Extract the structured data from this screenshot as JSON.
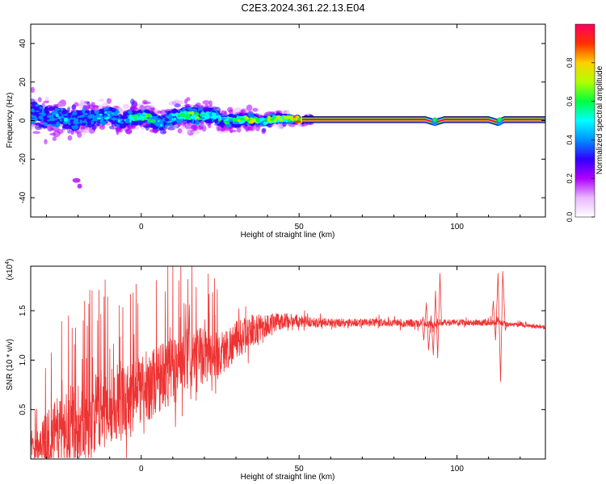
{
  "title": "C2E3.2024.361.22.13.E04",
  "chart_data": [
    {
      "type": "heatmap",
      "xlabel": "Height of straight line (km)",
      "ylabel": "Frequency (Hz)",
      "xlim": [
        -35,
        128
      ],
      "ylim": [
        -50,
        50
      ],
      "xticks": [
        0,
        50,
        100
      ],
      "yticks": [
        -40,
        -20,
        0,
        20,
        40
      ],
      "colorbar": {
        "label": "Normalized spectral amplitude",
        "range": [
          0,
          1
        ],
        "ticks": [
          "0.0",
          "0.2",
          "0.4",
          "0.6",
          "0.8"
        ],
        "colors": [
          "#ffffff",
          "#e8b8ff",
          "#b000ff",
          "#3000ff",
          "#0090ff",
          "#00ffff",
          "#00ff40",
          "#b0ff00",
          "#ffd000",
          "#ff3000",
          "#ff0060"
        ]
      },
      "ridge": {
        "x": [
          -34,
          -30,
          -26,
          -22,
          -18,
          -14,
          -10,
          -6,
          -2,
          2,
          6,
          10,
          14,
          18,
          22,
          26,
          30,
          34,
          38,
          42,
          46,
          50,
          55,
          60,
          70,
          80,
          90,
          93,
          96,
          100,
          110,
          113,
          115,
          120,
          128
        ],
        "freq": [
          4,
          1,
          2,
          -1,
          2,
          1,
          3,
          0,
          2,
          2,
          -2,
          2,
          3,
          2,
          3,
          0,
          0,
          1,
          -1,
          1,
          1,
          0.5,
          0.5,
          0.5,
          0.5,
          0.5,
          0.5,
          -1,
          0.5,
          0.5,
          0.5,
          -1,
          0.5,
          0.5,
          0.5
        ],
        "amplitude": [
          0.3,
          0.3,
          0.4,
          0.35,
          0.35,
          0.4,
          0.4,
          0.35,
          0.5,
          0.55,
          0.35,
          0.45,
          0.55,
          0.55,
          0.45,
          0.5,
          0.5,
          0.65,
          0.6,
          0.6,
          0.6,
          0.8,
          0.95,
          0.95,
          0.95,
          0.95,
          0.95,
          0.6,
          0.95,
          0.95,
          0.95,
          0.6,
          0.95,
          0.95,
          0.95
        ]
      },
      "spread": {
        "x": [
          -34,
          -25,
          -15,
          -5,
          5,
          15,
          25,
          35,
          45,
          52
        ],
        "freq_halfwidth": [
          12,
          10,
          8,
          7,
          7,
          8,
          6,
          5,
          4,
          2
        ]
      }
    },
    {
      "type": "line",
      "xlabel": "Height of straight line (km)",
      "ylabel": "SNR (10 * v/v)",
      "yscale_label": "(x10",
      "yscale_exponent": "4",
      "xlim": [
        -35,
        128
      ],
      "ylim": [
        0,
        1.95
      ],
      "xticks": [
        0,
        50,
        100
      ],
      "yticks": [
        0.5,
        1.0,
        1.5
      ],
      "ytick_labels": [
        "0.5",
        "1.0",
        "1.5"
      ],
      "color": "#ee3333",
      "envelope": {
        "x": [
          -35,
          -30,
          -25,
          -20,
          -15,
          -10,
          -5,
          0,
          5,
          10,
          15,
          20,
          25,
          30,
          35,
          40,
          45,
          50,
          55,
          60,
          70,
          80,
          88,
          90,
          92,
          95,
          100,
          110,
          112,
          114,
          116,
          120,
          128
        ],
        "mean": [
          0.1,
          0.2,
          0.3,
          0.4,
          0.45,
          0.55,
          0.6,
          0.7,
          0.8,
          0.9,
          1.0,
          1.05,
          1.05,
          1.2,
          1.3,
          1.35,
          1.4,
          1.4,
          1.38,
          1.38,
          1.38,
          1.38,
          1.37,
          1.38,
          1.35,
          1.38,
          1.38,
          1.38,
          1.38,
          1.38,
          1.36,
          1.36,
          1.33
        ],
        "amp": [
          0.1,
          0.35,
          0.5,
          0.5,
          0.5,
          0.5,
          0.45,
          0.45,
          0.45,
          0.45,
          0.4,
          0.35,
          0.3,
          0.25,
          0.2,
          0.15,
          0.1,
          0.08,
          0.06,
          0.06,
          0.05,
          0.05,
          0.05,
          0.05,
          0.05,
          0.04,
          0.04,
          0.04,
          0.04,
          0.04,
          0.03,
          0.03,
          0.03
        ]
      },
      "features": [
        {
          "x": [
            89.5,
            90.3,
            91.0,
            91.8,
            92.5,
            93.2,
            93.9,
            94.6
          ],
          "y": [
            1.2,
            1.58,
            1.1,
            1.45,
            1.05,
            1.7,
            1.02,
            1.88
          ]
        },
        {
          "x": [
            111.5,
            112.2,
            113.0,
            113.8,
            114.5,
            115.3
          ],
          "y": [
            1.6,
            1.2,
            1.88,
            0.78,
            1.9,
            1.3
          ]
        }
      ]
    }
  ]
}
